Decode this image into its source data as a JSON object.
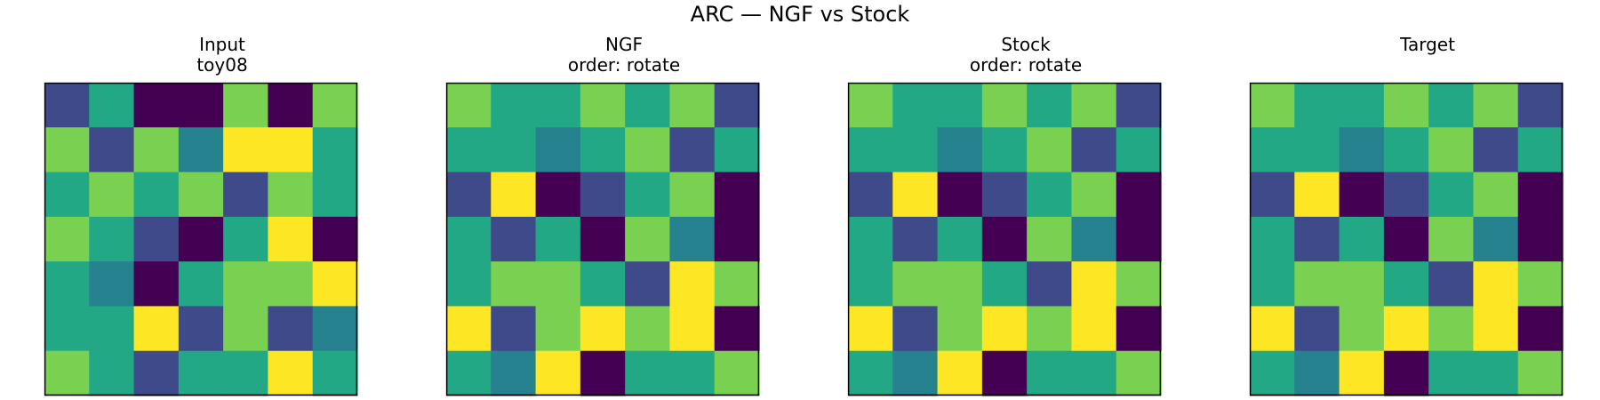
{
  "title": "ARC — NGF vs Stock",
  "colors": {
    "0": "#440154",
    "1": "#3e4a89",
    "2": "#26828e",
    "3": "#22a884",
    "4": "#7ad151",
    "5": "#fde725"
  },
  "chart_data": [
    {
      "type": "heatmap",
      "title_lines": [
        "Input",
        "toy08"
      ],
      "grid": [
        [
          1,
          3,
          0,
          0,
          4,
          0,
          4
        ],
        [
          4,
          1,
          4,
          2,
          5,
          5,
          3
        ],
        [
          3,
          4,
          3,
          4,
          1,
          4,
          3
        ],
        [
          4,
          3,
          1,
          0,
          3,
          5,
          0
        ],
        [
          3,
          2,
          0,
          3,
          4,
          4,
          5
        ],
        [
          3,
          3,
          5,
          1,
          4,
          1,
          2
        ],
        [
          4,
          3,
          1,
          3,
          3,
          5,
          3
        ]
      ]
    },
    {
      "type": "heatmap",
      "title_lines": [
        "NGF",
        "order: rotate"
      ],
      "grid": [
        [
          4,
          3,
          3,
          4,
          3,
          4,
          1
        ],
        [
          3,
          3,
          2,
          3,
          4,
          1,
          3
        ],
        [
          1,
          5,
          0,
          1,
          3,
          4,
          0
        ],
        [
          3,
          1,
          3,
          0,
          4,
          2,
          0
        ],
        [
          3,
          4,
          4,
          3,
          1,
          5,
          4
        ],
        [
          5,
          1,
          4,
          5,
          4,
          5,
          0
        ],
        [
          3,
          2,
          5,
          0,
          3,
          3,
          4
        ]
      ]
    },
    {
      "type": "heatmap",
      "title_lines": [
        "Stock",
        "order: rotate"
      ],
      "grid": [
        [
          4,
          3,
          3,
          4,
          3,
          4,
          1
        ],
        [
          3,
          3,
          2,
          3,
          4,
          1,
          3
        ],
        [
          1,
          5,
          0,
          1,
          3,
          4,
          0
        ],
        [
          3,
          1,
          3,
          0,
          4,
          2,
          0
        ],
        [
          3,
          4,
          4,
          3,
          1,
          5,
          4
        ],
        [
          5,
          1,
          4,
          5,
          4,
          5,
          0
        ],
        [
          3,
          2,
          5,
          0,
          3,
          3,
          4
        ]
      ]
    },
    {
      "type": "heatmap",
      "title_lines": [
        "",
        "Target"
      ],
      "grid": [
        [
          4,
          3,
          3,
          4,
          3,
          4,
          1
        ],
        [
          3,
          3,
          2,
          3,
          4,
          1,
          3
        ],
        [
          1,
          5,
          0,
          1,
          3,
          4,
          0
        ],
        [
          3,
          1,
          3,
          0,
          4,
          2,
          0
        ],
        [
          3,
          4,
          4,
          3,
          1,
          5,
          4
        ],
        [
          5,
          1,
          4,
          5,
          4,
          5,
          0
        ],
        [
          3,
          2,
          5,
          0,
          3,
          3,
          4
        ]
      ]
    }
  ]
}
